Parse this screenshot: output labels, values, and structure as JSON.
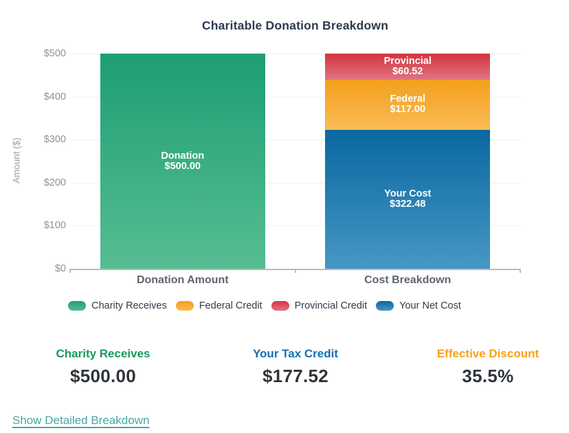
{
  "title": "Charitable Donation Breakdown",
  "chart_data": {
    "type": "bar",
    "stacked": true,
    "title": "Charitable Donation Breakdown",
    "ylabel": "Amount ($)",
    "ylim": [
      0,
      500
    ],
    "yticks": [
      0,
      100,
      200,
      300,
      400,
      500
    ],
    "ytick_labels": [
      "$0",
      "$100",
      "$200",
      "$300",
      "$400",
      "$500"
    ],
    "grid": true,
    "legend_position": "bottom",
    "categories": [
      "Donation Amount",
      "Cost Breakdown"
    ],
    "series": [
      {
        "name": "Charity Receives",
        "values": [
          500,
          0
        ]
      },
      {
        "name": "Federal Credit",
        "values": [
          0,
          117.0
        ]
      },
      {
        "name": "Provincial Credit",
        "values": [
          0,
          60.52
        ]
      },
      {
        "name": "Your Net Cost",
        "values": [
          0,
          322.48
        ]
      }
    ],
    "colors": {
      "Charity Receives": {
        "top": "#1d9e73",
        "bottom": "#57bd92"
      },
      "Federal Credit": {
        "top": "#f3a01c",
        "bottom": "#f9bb55"
      },
      "Provincial Credit": {
        "top": "#d23440",
        "bottom": "#e1747e"
      },
      "Your Net Cost": {
        "top": "#0a67a0",
        "bottom": "#4697c4"
      }
    },
    "bars": [
      {
        "category": "Donation Amount",
        "segments": [
          {
            "series": "Charity Receives",
            "value": 500,
            "label_lines": [
              "Donation",
              "$500.00"
            ]
          }
        ]
      },
      {
        "category": "Cost Breakdown",
        "segments": [
          {
            "series": "Your Net Cost",
            "value": 322.48,
            "label_lines": [
              "Your Cost",
              "$322.48"
            ]
          },
          {
            "series": "Federal Credit",
            "value": 117.0,
            "label_lines": [
              "Federal",
              "$117.00"
            ]
          },
          {
            "series": "Provincial Credit",
            "value": 60.52,
            "label_lines": [
              "Provincial",
              "$60.52"
            ]
          }
        ]
      }
    ],
    "legend": [
      {
        "label": "Charity Receives",
        "color_key": "Charity Receives"
      },
      {
        "label": "Federal Credit",
        "color_key": "Federal Credit"
      },
      {
        "label": "Provincial Credit",
        "color_key": "Provincial Credit"
      },
      {
        "label": "Your Net Cost",
        "color_key": "Your Net Cost"
      }
    ]
  },
  "stats": [
    {
      "label": "Charity Receives",
      "value": "$500.00",
      "color": "#16995f"
    },
    {
      "label": "Your Tax Credit",
      "value": "$177.52",
      "color": "#0c71b7"
    },
    {
      "label": "Effective Discount",
      "value": "35.5%",
      "color": "#f8a01b"
    }
  ],
  "footer": {
    "link_label": "Show Detailed Breakdown"
  }
}
